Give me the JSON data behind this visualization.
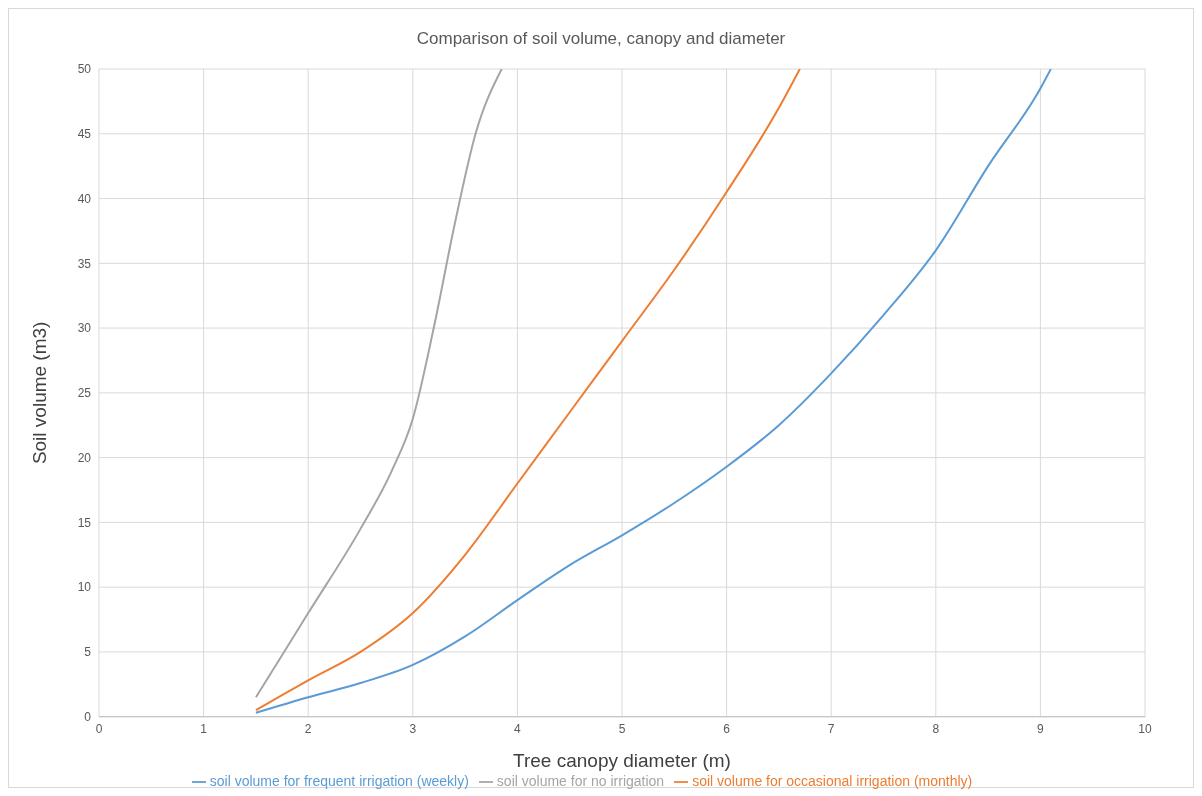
{
  "chart_data": {
    "type": "line",
    "title": "Comparison of soil volume, canopy and diameter",
    "xlabel": "Tree canopy diameter (m)",
    "ylabel": "Soil volume (m3)",
    "xlim": [
      0,
      10
    ],
    "xticks": [
      0,
      1,
      2,
      3,
      4,
      5,
      6,
      7,
      8,
      9,
      10
    ],
    "ylim": [
      0,
      50
    ],
    "yticks": [
      0,
      5,
      10,
      15,
      20,
      25,
      30,
      35,
      40,
      45,
      50
    ],
    "grid": true,
    "legend": "bottom",
    "marker": "none",
    "series": [
      {
        "name": "soil volume for frequent irrigation (weekly)",
        "color": "#5b9bd5",
        "x": [
          1.5,
          2,
          2.5,
          3,
          3.5,
          4,
          4.5,
          5,
          5.5,
          6,
          6.5,
          7,
          7.5,
          8,
          8.5,
          9,
          9.1
        ],
        "values": [
          0.3,
          1.5,
          2.6,
          4,
          6.2,
          9,
          11.7,
          14,
          16.5,
          19.3,
          22.5,
          26.5,
          31,
          36,
          42.5,
          48.5,
          50
        ]
      },
      {
        "name": "soil volume for occasional irrigation (monthly)",
        "color": "#ed7d31",
        "x": [
          1.5,
          2,
          2.5,
          3,
          3.5,
          4,
          4.5,
          5,
          5.5,
          6,
          6.5,
          6.7
        ],
        "values": [
          0.5,
          2.8,
          5,
          8,
          12.5,
          18,
          23.5,
          29,
          34.5,
          40.5,
          47,
          50
        ]
      },
      {
        "name": "soil volume for no irrigation",
        "color": "#a5a5a5",
        "x": [
          1.5,
          2,
          2.5,
          2.8,
          3,
          3.2,
          3.4,
          3.6,
          3.85
        ],
        "values": [
          1.5,
          8,
          14.5,
          19,
          23,
          30,
          38,
          45,
          50
        ]
      }
    ]
  }
}
